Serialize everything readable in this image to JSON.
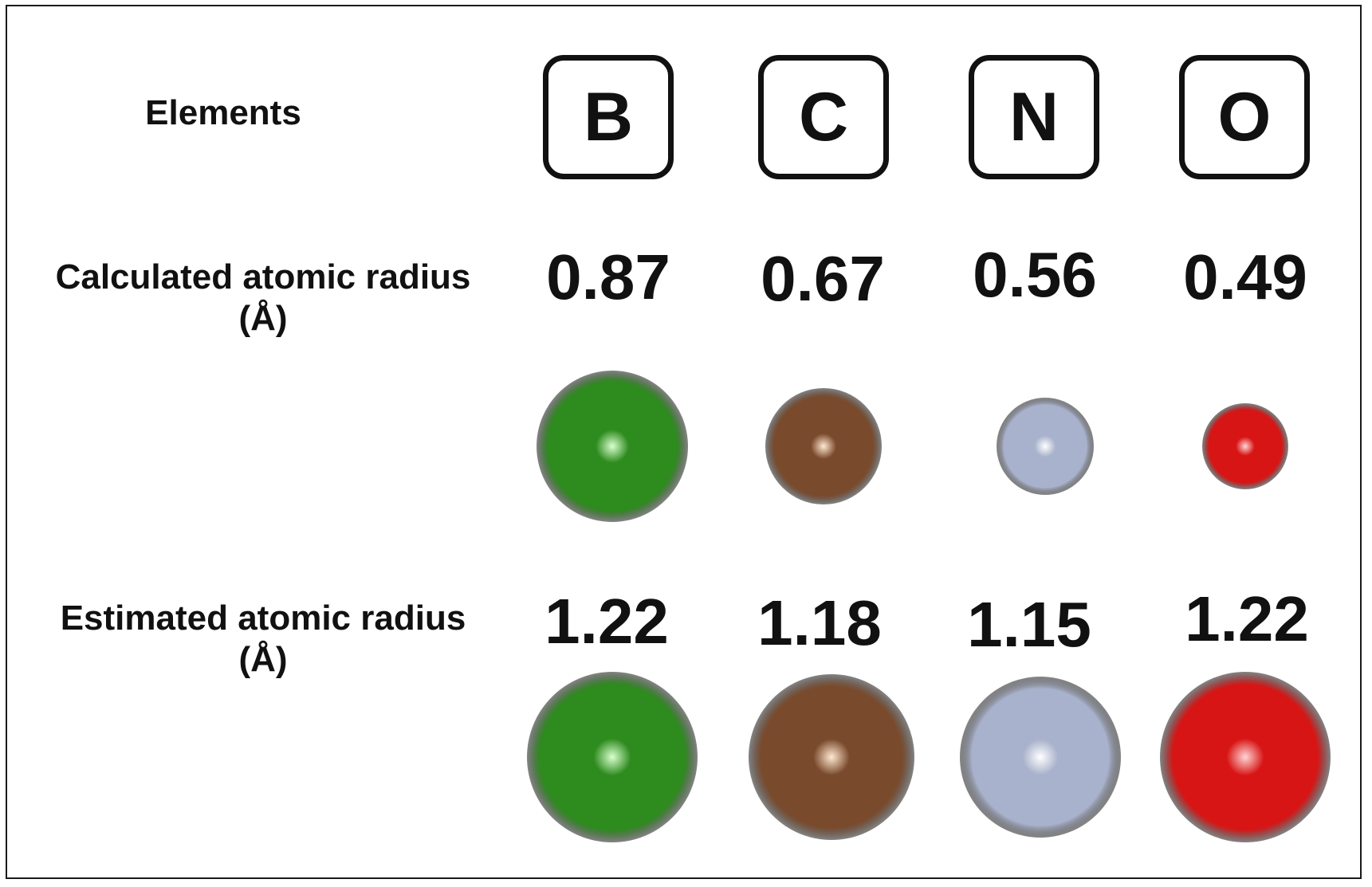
{
  "labels": {
    "elements": "Elements",
    "calculated_line1": "Calculated atomic radius",
    "calculated_line2": "(Å)",
    "estimated_line1": "Estimated atomic radius",
    "estimated_line2": "(Å)"
  },
  "elements": [
    {
      "symbol": "B",
      "calculated": "0.87",
      "estimated": "1.22",
      "color": "#2e8b1e",
      "highlight": "#d9ffd0"
    },
    {
      "symbol": "C",
      "calculated": "0.67",
      "estimated": "1.18",
      "color": "#7a4a2c",
      "highlight": "#ffe9d2"
    },
    {
      "symbol": "N",
      "calculated": "0.56",
      "estimated": "1.15",
      "color": "#a9b2cc",
      "highlight": "#ffffff"
    },
    {
      "symbol": "O",
      "calculated": "0.49",
      "estimated": "1.22",
      "color": "#d81515",
      "highlight": "#ffd6d6"
    }
  ]
}
